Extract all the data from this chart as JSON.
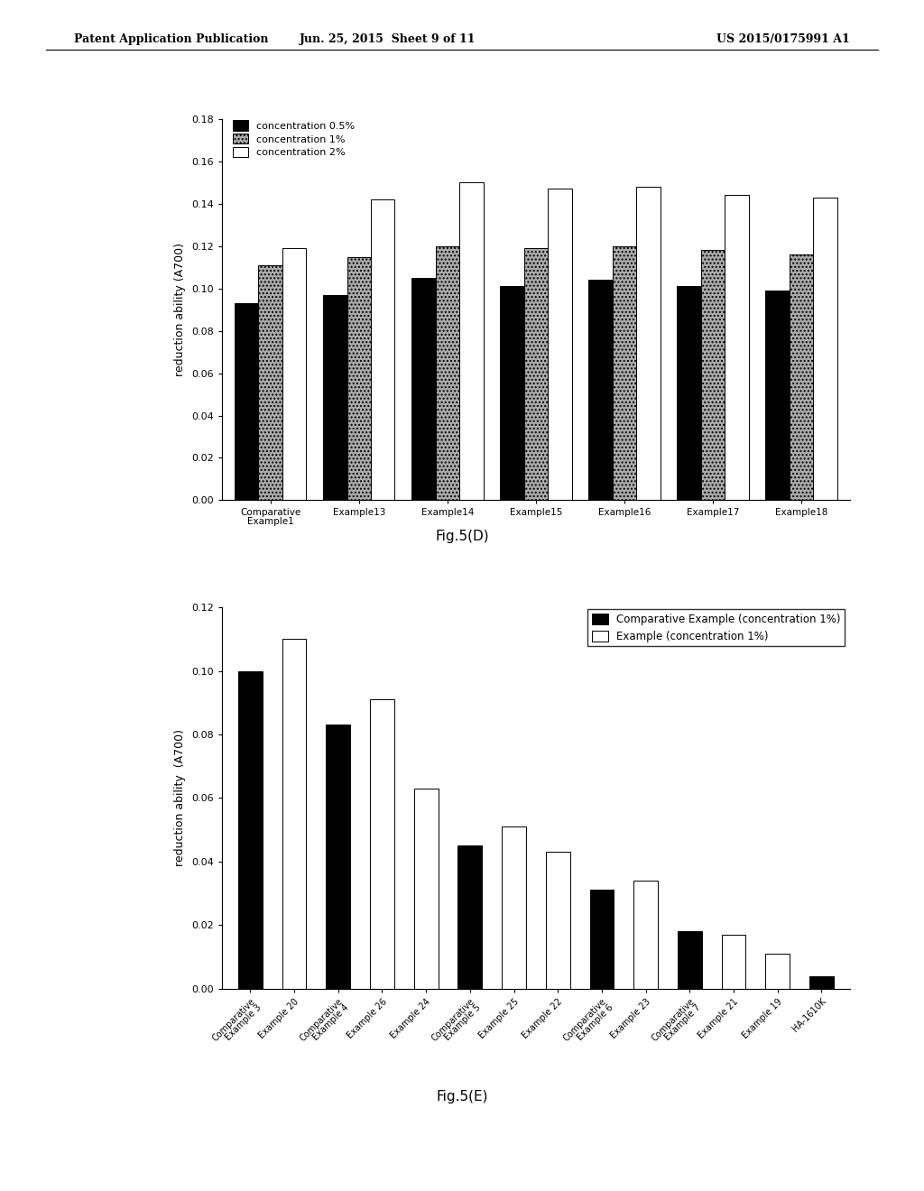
{
  "chart_d": {
    "categories": [
      "Comparative\nExample1",
      "Example13",
      "Example14",
      "Example15",
      "Example16",
      "Example17",
      "Example18"
    ],
    "conc_05": [
      0.093,
      0.097,
      0.105,
      0.101,
      0.104,
      0.101,
      0.099
    ],
    "conc_1": [
      0.111,
      0.115,
      0.12,
      0.119,
      0.12,
      0.118,
      0.116
    ],
    "conc_2": [
      0.119,
      0.142,
      0.15,
      0.147,
      0.148,
      0.144,
      0.143
    ],
    "ylabel": "reduction ability (A700)",
    "ylim": [
      0,
      0.18
    ],
    "yticks": [
      0,
      0.02,
      0.04,
      0.06,
      0.08,
      0.1,
      0.12,
      0.14,
      0.16,
      0.18
    ],
    "legend_labels": [
      "concentration 0.5%",
      "concentration 1%",
      "concentration 2%"
    ],
    "colors": [
      "#000000",
      "#888888",
      "#ffffff"
    ],
    "fig_label": "Fig.5(D)"
  },
  "chart_e": {
    "categories": [
      "Comparative\nExample 3",
      "Example 20",
      "Comparative\nExample 4",
      "Example 26",
      "Example 24",
      "Comparative\nExample 5",
      "Example 25",
      "Example 22",
      "Comparative\nExample 6",
      "Example 23",
      "Comparative\nExample 7",
      "Example 21",
      "Example 19",
      "HA-1610K"
    ],
    "comp_vals": [
      0.1,
      null,
      0.083,
      null,
      null,
      0.045,
      null,
      null,
      0.031,
      null,
      0.018,
      null,
      null,
      0.004
    ],
    "exam_vals": [
      null,
      0.11,
      null,
      0.091,
      0.063,
      null,
      0.051,
      0.043,
      null,
      0.034,
      null,
      0.017,
      0.011,
      null
    ],
    "ylabel": "reduction ability  (A700)",
    "ylim": [
      0,
      0.12
    ],
    "yticks": [
      0.0,
      0.02,
      0.04,
      0.06,
      0.08,
      0.1,
      0.12
    ],
    "legend_labels": [
      "Comparative Example (concentration 1%)",
      "Example (concentration 1%)"
    ],
    "colors": [
      "#000000",
      "#ffffff"
    ],
    "fig_label": "Fig.5(E)"
  },
  "header_left": "Patent Application Publication",
  "header_mid": "Jun. 25, 2015  Sheet 9 of 11",
  "header_right": "US 2015/0175991 A1",
  "background_color": "#ffffff",
  "text_color": "#000000"
}
